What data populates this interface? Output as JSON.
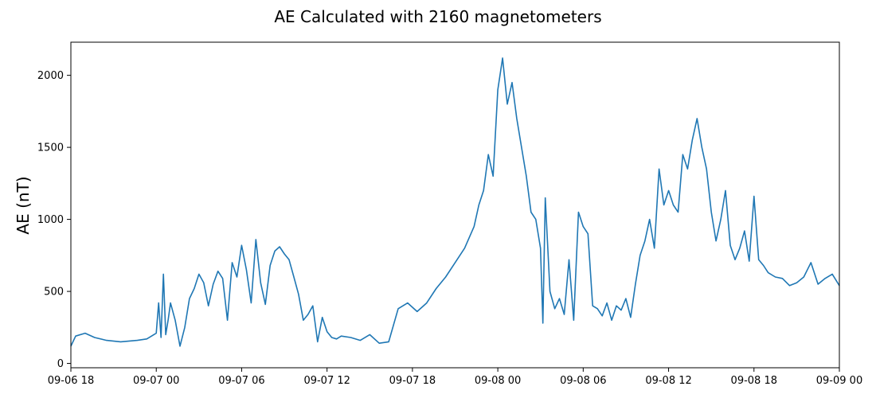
{
  "chart_data": {
    "type": "line",
    "title": "AE Calculated with 2160 magnetometers",
    "xlabel": "",
    "ylabel": "AE (nT)",
    "xlim": [
      "2017-09-06 18:00",
      "2017-09-09 00:00"
    ],
    "ylim": [
      -30,
      2230
    ],
    "x_ticks": [
      "09-06 18",
      "09-07 00",
      "09-07 06",
      "09-07 12",
      "09-07 18",
      "09-08 00",
      "09-08 06",
      "09-08 12",
      "09-08 18",
      "09-09 00"
    ],
    "y_ticks": [
      0,
      500,
      1000,
      1500,
      2000
    ],
    "grid": false,
    "legend": "none",
    "series": [
      {
        "color": "#1f77b4",
        "x": [
          "2017-09-06 18:00",
          "2017-09-06 18:20",
          "2017-09-06 19:00",
          "2017-09-06 19:40",
          "2017-09-06 20:30",
          "2017-09-06 21:30",
          "2017-09-06 22:40",
          "2017-09-06 23:20",
          "2017-09-06 23:40",
          "2017-09-07 00:00",
          "2017-09-07 00:10",
          "2017-09-07 00:20",
          "2017-09-07 00:30",
          "2017-09-07 00:40",
          "2017-09-07 00:50",
          "2017-09-07 01:00",
          "2017-09-07 01:20",
          "2017-09-07 01:40",
          "2017-09-07 02:00",
          "2017-09-07 02:20",
          "2017-09-07 02:40",
          "2017-09-07 03:00",
          "2017-09-07 03:20",
          "2017-09-07 03:40",
          "2017-09-07 04:00",
          "2017-09-07 04:20",
          "2017-09-07 04:40",
          "2017-09-07 05:00",
          "2017-09-07 05:20",
          "2017-09-07 05:40",
          "2017-09-07 06:00",
          "2017-09-07 06:20",
          "2017-09-07 06:40",
          "2017-09-07 07:00",
          "2017-09-07 07:20",
          "2017-09-07 07:40",
          "2017-09-07 08:00",
          "2017-09-07 08:20",
          "2017-09-07 08:40",
          "2017-09-07 09:00",
          "2017-09-07 09:20",
          "2017-09-07 09:40",
          "2017-09-07 10:00",
          "2017-09-07 10:20",
          "2017-09-07 10:40",
          "2017-09-07 11:00",
          "2017-09-07 11:20",
          "2017-09-07 11:40",
          "2017-09-07 12:00",
          "2017-09-07 12:20",
          "2017-09-07 12:40",
          "2017-09-07 13:00",
          "2017-09-07 13:40",
          "2017-09-07 14:20",
          "2017-09-07 15:00",
          "2017-09-07 15:40",
          "2017-09-07 16:20",
          "2017-09-07 17:00",
          "2017-09-07 17:40",
          "2017-09-07 18:20",
          "2017-09-07 19:00",
          "2017-09-07 19:40",
          "2017-09-07 20:20",
          "2017-09-07 21:00",
          "2017-09-07 21:40",
          "2017-09-07 22:20",
          "2017-09-07 22:40",
          "2017-09-07 23:00",
          "2017-09-07 23:20",
          "2017-09-07 23:40",
          "2017-09-08 00:00",
          "2017-09-08 00:20",
          "2017-09-08 00:40",
          "2017-09-08 01:00",
          "2017-09-08 01:20",
          "2017-09-08 01:40",
          "2017-09-08 02:00",
          "2017-09-08 02:20",
          "2017-09-08 02:40",
          "2017-09-08 03:00",
          "2017-09-08 03:10",
          "2017-09-08 03:20",
          "2017-09-08 03:40",
          "2017-09-08 04:00",
          "2017-09-08 04:20",
          "2017-09-08 04:40",
          "2017-09-08 05:00",
          "2017-09-08 05:20",
          "2017-09-08 05:40",
          "2017-09-08 06:00",
          "2017-09-08 06:20",
          "2017-09-08 06:40",
          "2017-09-08 07:00",
          "2017-09-08 07:20",
          "2017-09-08 07:40",
          "2017-09-08 08:00",
          "2017-09-08 08:20",
          "2017-09-08 08:40",
          "2017-09-08 09:00",
          "2017-09-08 09:20",
          "2017-09-08 09:40",
          "2017-09-08 10:00",
          "2017-09-08 10:20",
          "2017-09-08 10:40",
          "2017-09-08 11:00",
          "2017-09-08 11:20",
          "2017-09-08 11:40",
          "2017-09-08 12:00",
          "2017-09-08 12:20",
          "2017-09-08 12:40",
          "2017-09-08 13:00",
          "2017-09-08 13:20",
          "2017-09-08 13:40",
          "2017-09-08 14:00",
          "2017-09-08 14:20",
          "2017-09-08 14:40",
          "2017-09-08 15:00",
          "2017-09-08 15:20",
          "2017-09-08 15:40",
          "2017-09-08 16:00",
          "2017-09-08 16:20",
          "2017-09-08 16:40",
          "2017-09-08 17:00",
          "2017-09-08 17:20",
          "2017-09-08 17:40",
          "2017-09-08 18:00",
          "2017-09-08 18:20",
          "2017-09-08 18:40",
          "2017-09-08 19:00",
          "2017-09-08 19:30",
          "2017-09-08 20:00",
          "2017-09-08 20:30",
          "2017-09-08 21:00",
          "2017-09-08 21:30",
          "2017-09-08 22:00",
          "2017-09-08 22:30",
          "2017-09-08 23:00",
          "2017-09-08 23:30",
          "2017-09-09 00:00"
        ],
        "y": [
          120,
          190,
          210,
          180,
          160,
          150,
          160,
          170,
          190,
          210,
          420,
          180,
          620,
          200,
          300,
          420,
          300,
          120,
          250,
          450,
          520,
          620,
          560,
          400,
          550,
          640,
          590,
          300,
          700,
          600,
          820,
          650,
          420,
          860,
          560,
          410,
          680,
          780,
          810,
          760,
          720,
          600,
          480,
          300,
          340,
          400,
          150,
          320,
          220,
          180,
          170,
          190,
          180,
          160,
          200,
          140,
          150,
          380,
          420,
          360,
          420,
          520,
          600,
          700,
          800,
          950,
          1100,
          1200,
          1450,
          1300,
          1900,
          2120,
          1800,
          1950,
          1700,
          1500,
          1300,
          1050,
          1000,
          800,
          280,
          1150,
          500,
          380,
          450,
          340,
          720,
          300,
          1050,
          950,
          900,
          400,
          380,
          330,
          420,
          300,
          400,
          370,
          450,
          320,
          550,
          750,
          850,
          1000,
          800,
          1350,
          1100,
          1200,
          1100,
          1050,
          1450,
          1350,
          1550,
          1700,
          1500,
          1350,
          1050,
          850,
          1000,
          1200,
          820,
          720,
          800,
          920,
          710,
          1160,
          720,
          680,
          630,
          600,
          590,
          540,
          560,
          600,
          700,
          550,
          590,
          620,
          540
        ]
      }
    ]
  }
}
